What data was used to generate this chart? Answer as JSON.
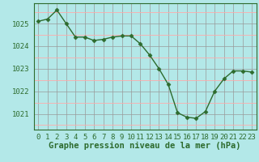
{
  "x": [
    0,
    1,
    2,
    3,
    4,
    5,
    6,
    7,
    8,
    9,
    10,
    11,
    12,
    13,
    14,
    15,
    16,
    17,
    18,
    19,
    20,
    21,
    22,
    23
  ],
  "y": [
    1025.1,
    1025.2,
    1025.6,
    1025.0,
    1024.4,
    1024.4,
    1024.25,
    1024.3,
    1024.4,
    1024.45,
    1024.45,
    1024.1,
    1023.6,
    1023.0,
    1022.3,
    1021.05,
    1020.85,
    1020.8,
    1021.1,
    1022.0,
    1022.55,
    1022.9,
    1022.9,
    1022.85
  ],
  "line_color": "#2d6b2d",
  "marker": "D",
  "marker_size": 2.5,
  "bg_color": "#b3e8e8",
  "grid_color_major": "#999999",
  "grid_color_minor": "#ffaaaa",
  "xlabel": "Graphe pression niveau de la mer (hPa)",
  "xlabel_fontsize": 7.5,
  "ylabel_ticks": [
    1021,
    1022,
    1023,
    1024,
    1025
  ],
  "xlim": [
    -0.5,
    23.5
  ],
  "ylim": [
    1020.3,
    1025.9
  ],
  "xticks": [
    0,
    1,
    2,
    3,
    4,
    5,
    6,
    7,
    8,
    9,
    10,
    11,
    12,
    13,
    14,
    15,
    16,
    17,
    18,
    19,
    20,
    21,
    22,
    23
  ],
  "xtick_labels": [
    "0",
    "1",
    "2",
    "3",
    "4",
    "5",
    "6",
    "7",
    "8",
    "9",
    "10",
    "11",
    "12",
    "13",
    "14",
    "15",
    "16",
    "17",
    "18",
    "19",
    "20",
    "21",
    "22",
    "23"
  ],
  "tick_fontsize": 6.5,
  "line_width": 1.0
}
